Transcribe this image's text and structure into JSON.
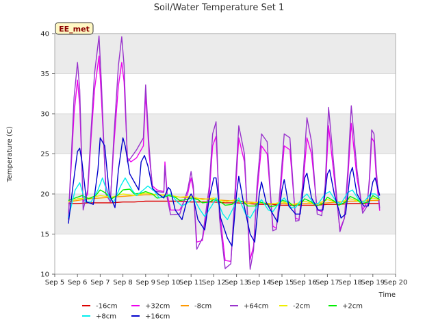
{
  "chart_data": {
    "type": "line",
    "title": "Soil/Water Temperature Set 1",
    "xlabel": "Time",
    "ylabel": "Temperature (C)",
    "xlim": [
      5,
      20
    ],
    "ylim": [
      10,
      40
    ],
    "x_ticks": [
      5,
      6,
      7,
      8,
      9,
      10,
      11,
      12,
      13,
      14,
      15,
      16,
      17,
      18,
      19,
      20
    ],
    "x_tick_labels": [
      "Sep 5",
      "Sep 6",
      "Sep 7",
      "Sep 8",
      "Sep 9",
      "Sep 10",
      "Sep 11",
      "Sep 12",
      "Sep 13",
      "Sep 14",
      "Sep 15",
      "Sep 16",
      "Sep 17",
      "Sep 18",
      "Sep 19",
      "Sep 20"
    ],
    "y_ticks": [
      10,
      15,
      20,
      25,
      30,
      35,
      40
    ],
    "y_tick_labels": [
      "10",
      "15",
      "20",
      "25",
      "30",
      "35",
      "40"
    ],
    "grid": true,
    "banded_background": true,
    "legend_position": "bottom",
    "annotation": "EE_met",
    "series": [
      {
        "name": "-16cm",
        "color": "#dd0000",
        "x": [
          5.6,
          6,
          6.5,
          7,
          7.5,
          8,
          8.5,
          9,
          9.5,
          10,
          10.5,
          11,
          11.5,
          12,
          12.5,
          13,
          13.5,
          14,
          14.5,
          15,
          15.5,
          16,
          16.5,
          17,
          17.5,
          18,
          18.5,
          19,
          19.3
        ],
        "values": [
          18.8,
          18.8,
          18.9,
          18.9,
          18.9,
          19.0,
          19.0,
          19.1,
          19.1,
          19.1,
          19.1,
          19.0,
          19.0,
          19.0,
          18.9,
          18.9,
          18.8,
          18.7,
          18.7,
          18.6,
          18.6,
          18.6,
          18.6,
          18.7,
          18.7,
          18.8,
          18.8,
          18.8,
          18.8
        ]
      },
      {
        "name": "+32cm",
        "color": "#ee00ee",
        "x": [
          5.6,
          5.85,
          6.0,
          6.1,
          6.25,
          6.45,
          6.6,
          6.75,
          6.95,
          7.05,
          7.25,
          7.45,
          7.6,
          7.8,
          7.95,
          8.05,
          8.2,
          8.35,
          8.6,
          8.9,
          9.0,
          9.15,
          9.3,
          9.5,
          9.8,
          9.85,
          9.95,
          10.1,
          10.5,
          10.85,
          11.0,
          11.1,
          11.25,
          11.5,
          11.8,
          11.95,
          12.1,
          12.25,
          12.5,
          12.75,
          12.95,
          13.1,
          13.35,
          13.6,
          13.75,
          13.9,
          14.1,
          14.35,
          14.6,
          14.75,
          14.9,
          15.1,
          15.35,
          15.6,
          15.75,
          15.9,
          16.1,
          16.3,
          16.55,
          16.75,
          16.9,
          17.05,
          17.3,
          17.55,
          17.75,
          17.9,
          18.05,
          18.3,
          18.55,
          18.75,
          18.85,
          18.95,
          19.05,
          19.15,
          19.3
        ],
        "values": [
          17.0,
          30.0,
          34.2,
          31.0,
          19.0,
          20.0,
          27.0,
          33.0,
          37.2,
          32.0,
          21.0,
          19.2,
          26.0,
          33.5,
          36.4,
          34.0,
          24.5,
          24.0,
          24.5,
          26.0,
          32.5,
          25.0,
          21.0,
          20.5,
          20.3,
          24.0,
          20.0,
          18.0,
          18.0,
          20.0,
          22.0,
          20.5,
          14.0,
          14.2,
          20.0,
          26.0,
          27.2,
          18.0,
          11.7,
          11.6,
          20.0,
          27.0,
          24.0,
          11.8,
          13.5,
          20.0,
          26.0,
          25.0,
          16.0,
          15.7,
          19.0,
          26.0,
          25.5,
          17.0,
          16.8,
          20.0,
          27.0,
          25.0,
          18.0,
          17.8,
          20.0,
          28.5,
          22.0,
          15.6,
          17.0,
          22.0,
          28.8,
          22.0,
          18.0,
          19.0,
          21.5,
          27.0,
          26.5,
          22.0,
          17.9
        ]
      },
      {
        "name": "-8cm",
        "color": "#ff9900",
        "x": [
          5.6,
          6,
          6.5,
          7,
          7.5,
          8,
          8.5,
          9,
          9.5,
          10,
          10.5,
          11,
          11.5,
          12,
          12.5,
          13,
          13.5,
          14,
          14.5,
          15,
          15.5,
          16,
          16.5,
          17,
          17.5,
          18,
          18.5,
          19,
          19.3
        ],
        "values": [
          19.0,
          19.2,
          19.4,
          19.5,
          19.6,
          19.7,
          19.8,
          19.9,
          19.9,
          19.8,
          19.6,
          19.5,
          19.4,
          19.3,
          19.2,
          19.1,
          19.0,
          18.9,
          18.8,
          18.8,
          18.7,
          18.8,
          18.8,
          18.9,
          19.0,
          19.1,
          19.1,
          19.2,
          19.2
        ]
      },
      {
        "name": "+64cm",
        "color": "#9933cc",
        "x": [
          5.6,
          5.85,
          6.0,
          6.1,
          6.25,
          6.45,
          6.6,
          6.75,
          6.95,
          7.05,
          7.25,
          7.45,
          7.6,
          7.8,
          7.95,
          8.05,
          8.2,
          8.35,
          8.6,
          8.9,
          9.0,
          9.15,
          9.3,
          9.5,
          9.8,
          9.85,
          9.95,
          10.1,
          10.5,
          10.85,
          11.0,
          11.1,
          11.25,
          11.5,
          11.8,
          11.95,
          12.1,
          12.25,
          12.5,
          12.75,
          12.95,
          13.1,
          13.35,
          13.6,
          13.75,
          13.9,
          14.1,
          14.35,
          14.6,
          14.75,
          14.9,
          15.1,
          15.35,
          15.6,
          15.75,
          15.9,
          16.1,
          16.3,
          16.55,
          16.75,
          16.9,
          17.05,
          17.3,
          17.55,
          17.75,
          17.9,
          18.05,
          18.3,
          18.55,
          18.75,
          18.85,
          18.95,
          19.05,
          19.15,
          19.3
        ],
        "values": [
          16.8,
          32.0,
          36.4,
          33.0,
          18.0,
          20.5,
          28.0,
          35.0,
          39.7,
          34.0,
          20.0,
          19.0,
          27.0,
          36.0,
          39.6,
          36.0,
          24.0,
          24.5,
          25.5,
          27.0,
          33.6,
          26.0,
          20.5,
          20.3,
          20.2,
          23.5,
          19.5,
          17.4,
          17.5,
          20.5,
          22.8,
          21.0,
          13.1,
          14.5,
          21.0,
          27.5,
          29.0,
          17.0,
          10.7,
          11.3,
          21.0,
          28.5,
          25.0,
          10.6,
          13.0,
          21.0,
          27.5,
          26.5,
          15.4,
          15.6,
          20.0,
          27.5,
          27.0,
          16.6,
          16.7,
          21.0,
          29.5,
          26.5,
          17.5,
          17.3,
          21.0,
          30.8,
          23.0,
          15.3,
          17.0,
          23.0,
          31.0,
          23.0,
          17.6,
          18.5,
          22.0,
          28.0,
          27.5,
          23.0,
          18.2
        ]
      },
      {
        "name": "-2cm",
        "color": "#eeee00",
        "x": [
          5.6,
          6,
          6.5,
          7,
          7.5,
          8,
          8.5,
          9,
          9.5,
          10,
          10.5,
          11,
          11.5,
          12,
          12.5,
          13,
          13.5,
          14,
          14.5,
          15,
          15.5,
          16,
          16.5,
          17,
          17.5,
          18,
          18.5,
          19,
          19.3
        ],
        "values": [
          19.0,
          19.4,
          19.5,
          19.8,
          19.6,
          20.0,
          19.8,
          20.1,
          19.9,
          19.9,
          19.6,
          19.7,
          19.3,
          19.5,
          19.0,
          19.3,
          18.8,
          19.0,
          18.7,
          19.0,
          18.7,
          19.1,
          18.7,
          19.3,
          18.9,
          19.4,
          19.0,
          19.5,
          19.3
        ]
      },
      {
        "name": "+2cm",
        "color": "#00ee00",
        "x": [
          5.6,
          5.9,
          6.2,
          6.5,
          6.8,
          7.0,
          7.2,
          7.5,
          7.8,
          8.0,
          8.3,
          8.5,
          8.8,
          9.0,
          9.3,
          9.5,
          9.8,
          10.0,
          10.3,
          10.5,
          10.8,
          11.0,
          11.3,
          11.5,
          11.8,
          12.0,
          12.3,
          12.5,
          12.8,
          13.0,
          13.3,
          13.5,
          13.8,
          14.0,
          14.3,
          14.5,
          14.8,
          15.0,
          15.3,
          15.5,
          15.8,
          16.0,
          16.3,
          16.5,
          16.8,
          17.0,
          17.3,
          17.5,
          17.8,
          18.0,
          18.3,
          18.5,
          18.8,
          19.0,
          19.3
        ],
        "values": [
          19.2,
          19.5,
          19.8,
          19.4,
          19.8,
          20.5,
          20.2,
          19.4,
          19.9,
          20.5,
          20.6,
          20.0,
          20.1,
          20.3,
          20.0,
          19.5,
          19.6,
          19.8,
          19.6,
          19.2,
          19.3,
          19.5,
          19.3,
          18.9,
          19.0,
          19.3,
          19.0,
          18.6,
          18.7,
          19.2,
          19.0,
          18.5,
          18.5,
          19.0,
          18.8,
          18.4,
          18.6,
          19.2,
          19.0,
          18.5,
          18.7,
          19.4,
          19.0,
          18.5,
          18.8,
          19.6,
          19.1,
          18.6,
          19.0,
          19.7,
          19.3,
          18.8,
          19.0,
          19.8,
          19.3
        ]
      },
      {
        "name": "+8cm",
        "color": "#00eeee",
        "x": [
          5.6,
          5.9,
          6.1,
          6.35,
          6.6,
          6.9,
          7.1,
          7.4,
          7.6,
          7.9,
          8.1,
          8.4,
          8.6,
          8.9,
          9.1,
          9.4,
          9.6,
          9.9,
          10.1,
          10.4,
          10.6,
          10.9,
          11.1,
          11.4,
          11.6,
          11.9,
          12.1,
          12.4,
          12.6,
          12.9,
          13.1,
          13.4,
          13.6,
          13.9,
          14.1,
          14.4,
          14.6,
          14.9,
          15.1,
          15.4,
          15.6,
          15.9,
          16.1,
          16.4,
          16.6,
          16.9,
          17.1,
          17.4,
          17.6,
          17.9,
          18.1,
          18.4,
          18.6,
          18.9,
          19.1,
          19.3
        ],
        "values": [
          17.0,
          20.5,
          21.4,
          19.0,
          19.0,
          20.5,
          22.0,
          19.5,
          19.0,
          21.0,
          22.0,
          20.5,
          19.8,
          20.5,
          21.0,
          20.3,
          19.5,
          19.8,
          20.0,
          19.0,
          18.5,
          19.0,
          19.5,
          18.0,
          17.2,
          18.5,
          19.5,
          17.5,
          16.8,
          18.5,
          19.5,
          17.5,
          17.0,
          18.5,
          19.3,
          18.0,
          17.8,
          19.0,
          19.5,
          18.3,
          18.3,
          19.5,
          20.0,
          18.8,
          18.8,
          20.0,
          20.3,
          19.0,
          18.8,
          20.2,
          20.5,
          19.2,
          19.0,
          20.0,
          20.0,
          19.5
        ]
      },
      {
        "name": "+16cm",
        "color": "#0000cc",
        "x": [
          5.6,
          5.8,
          6.0,
          6.1,
          6.2,
          6.4,
          6.7,
          6.9,
          7.0,
          7.2,
          7.4,
          7.65,
          7.8,
          8.0,
          8.1,
          8.3,
          8.7,
          8.8,
          8.95,
          9.1,
          9.3,
          9.55,
          9.8,
          10.0,
          10.1,
          10.3,
          10.6,
          10.8,
          11.0,
          11.1,
          11.3,
          11.6,
          11.8,
          12.0,
          12.1,
          12.3,
          12.6,
          12.8,
          13.0,
          13.1,
          13.3,
          13.6,
          13.8,
          14.0,
          14.1,
          14.3,
          14.6,
          14.8,
          15.0,
          15.1,
          15.3,
          15.6,
          15.8,
          16.0,
          16.1,
          16.3,
          16.6,
          16.8,
          17.0,
          17.1,
          17.3,
          17.6,
          17.8,
          18.0,
          18.1,
          18.3,
          18.6,
          18.8,
          19.0,
          19.1,
          19.3
        ],
        "values": [
          16.3,
          21.0,
          25.3,
          25.7,
          24.0,
          19.0,
          18.7,
          23.0,
          27.0,
          26.0,
          20.0,
          18.3,
          23.0,
          27.0,
          26.0,
          22.5,
          20.5,
          24.0,
          24.8,
          23.5,
          20.7,
          20.0,
          19.5,
          20.8,
          20.5,
          18.0,
          16.8,
          19.0,
          20.0,
          19.5,
          16.8,
          15.5,
          19.5,
          22.0,
          22.0,
          17.0,
          14.5,
          13.5,
          20.0,
          22.2,
          19.0,
          15.0,
          14.0,
          20.0,
          21.5,
          19.0,
          17.5,
          16.5,
          20.5,
          21.8,
          18.5,
          17.5,
          17.5,
          22.0,
          22.6,
          19.5,
          18.0,
          18.0,
          22.5,
          23.0,
          20.0,
          17.0,
          17.5,
          22.5,
          23.3,
          20.0,
          18.5,
          18.5,
          21.5,
          22.0,
          19.8
        ]
      }
    ]
  }
}
